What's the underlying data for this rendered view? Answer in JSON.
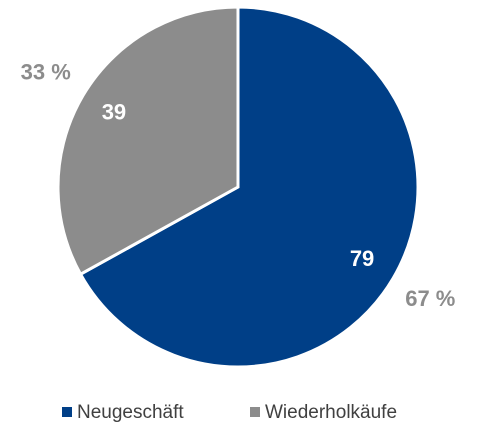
{
  "chart_data": {
    "type": "pie",
    "categories": [
      "Neugeschäft",
      "Wiederholkäufe"
    ],
    "values": [
      79,
      39
    ],
    "percent_labels": [
      "67 %",
      "33 %"
    ],
    "colors": [
      "#003f87",
      "#8c8c8c"
    ],
    "legend": "bottom"
  }
}
